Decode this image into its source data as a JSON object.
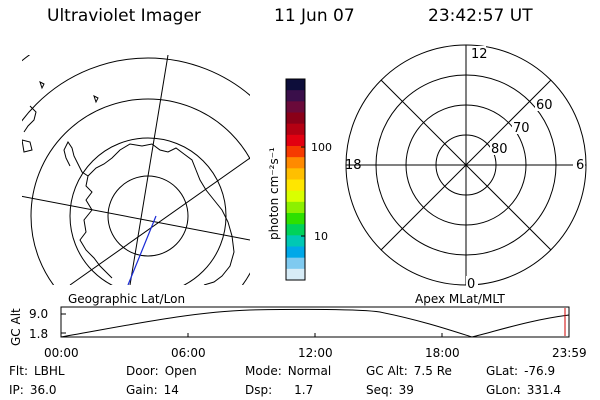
{
  "header": {
    "instrument": "Ultraviolet Imager",
    "date": "11 Jun 07",
    "time": "23:42:57 UT"
  },
  "left_map": {
    "label": "Geographic Lat/Lon"
  },
  "right_map": {
    "label": "Apex MLat/MLT",
    "mlt_labels": [
      "12",
      "18",
      "6",
      "0"
    ],
    "mlat_labels": [
      "60",
      "70",
      "80"
    ]
  },
  "colorbar": {
    "unit_label": "photon cm⁻²s⁻¹",
    "ticks": [
      "100",
      "10"
    ],
    "colors": [
      "#0d0d3a",
      "#3a0f4a",
      "#6a0a3a",
      "#8a0018",
      "#b40012",
      "#e20010",
      "#f63a00",
      "#ff8a00",
      "#ffbf00",
      "#ffe600",
      "#d9ff00",
      "#8cf000",
      "#2ee000",
      "#00d25a",
      "#00c8b4",
      "#00a8e8",
      "#7fcaf0",
      "#d7ecf7"
    ]
  },
  "altitude_strip": {
    "axis_title": "GC Alt",
    "y_ticks": [
      "9.0",
      "1.8"
    ],
    "x_ticks": [
      "00:00",
      "06:00",
      "12:00",
      "18:00",
      "23:59"
    ]
  },
  "info_panel": [
    {
      "key": "Flt:",
      "value": "LBHL"
    },
    {
      "key": "Door:",
      "value": "Open"
    },
    {
      "key": "Mode:",
      "value": "Normal"
    },
    {
      "key": "GC Alt:",
      "value": "7.5 Re"
    },
    {
      "key": "GLat:",
      "value": "-76.9"
    },
    {
      "key": "IP:",
      "value": "36.0"
    },
    {
      "key": "Gain:",
      "value": "14"
    },
    {
      "key": "Dsp:",
      "value": "1.7"
    },
    {
      "key": "Seq:",
      "value": "39"
    },
    {
      "key": "GLon:",
      "value": "331.4"
    }
  ]
}
